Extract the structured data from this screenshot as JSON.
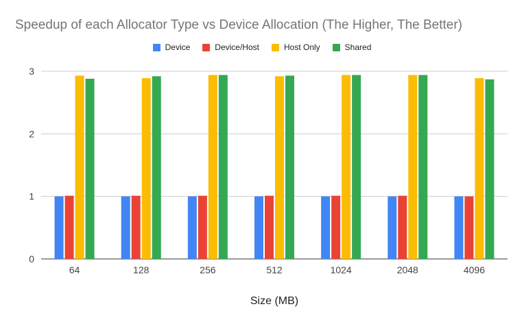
{
  "chart_data": {
    "type": "bar",
    "title": "Speedup of each Allocator Type vs Device Allocation (The Higher, The Better)",
    "xlabel": "Size (MB)",
    "ylabel": "",
    "ylim": [
      0,
      3
    ],
    "yticks": [
      0,
      1,
      2,
      3
    ],
    "grid": true,
    "legend_position": "top",
    "categories": [
      "64",
      "128",
      "256",
      "512",
      "1024",
      "2048",
      "4096"
    ],
    "series": [
      {
        "name": "Device",
        "color": "#4285f4",
        "values": [
          1.0,
          1.0,
          1.0,
          1.0,
          1.0,
          1.0,
          1.0
        ]
      },
      {
        "name": "Device/Host",
        "color": "#ea4335",
        "values": [
          1.01,
          1.01,
          1.01,
          1.01,
          1.01,
          1.01,
          1.0
        ]
      },
      {
        "name": "Host Only",
        "color": "#fbbc04",
        "values": [
          2.93,
          2.89,
          2.94,
          2.92,
          2.94,
          2.94,
          2.89
        ]
      },
      {
        "name": "Shared",
        "color": "#34a853",
        "values": [
          2.88,
          2.92,
          2.94,
          2.93,
          2.94,
          2.94,
          2.87
        ]
      }
    ]
  }
}
